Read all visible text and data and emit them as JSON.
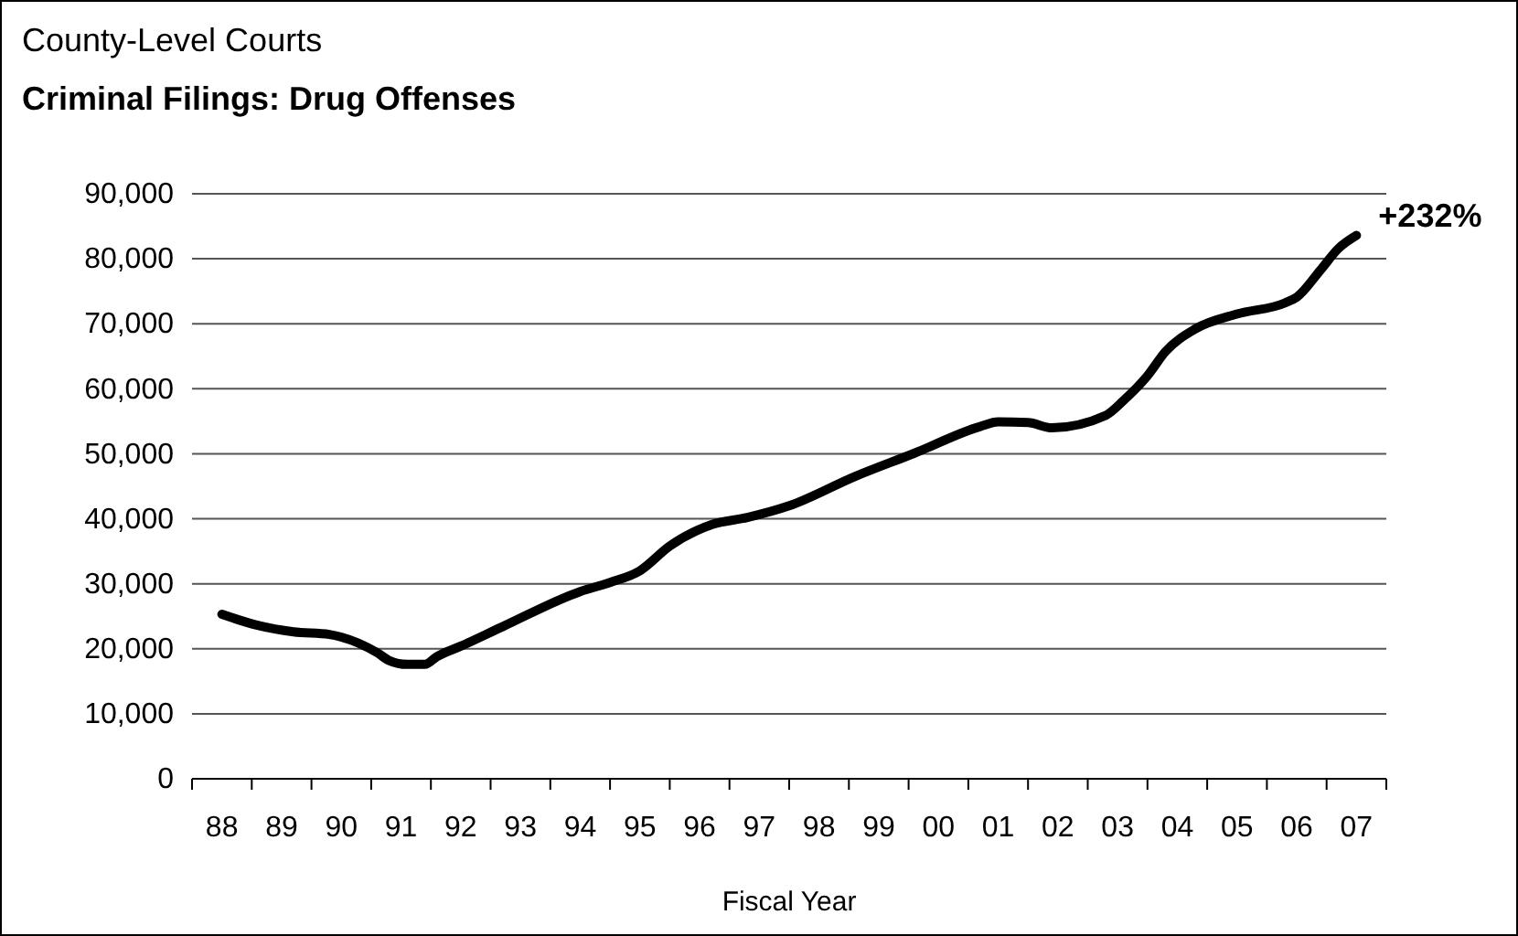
{
  "chart_data": {
    "type": "line",
    "title": "County-Level Courts",
    "subtitle": "Criminal Filings: Drug Offenses",
    "xlabel": "Fiscal Year",
    "x": [
      1988.0,
      1988.6,
      1989.2,
      1989.8,
      1990.0,
      1990.6,
      1990.8,
      1991.1,
      1991.4,
      1991.6,
      1992.0,
      1992.7,
      1994.0,
      1994.5,
      1995.0,
      1995.5,
      1996.2,
      1996.8,
      1997.5,
      1998.6,
      1999.6,
      2000.7,
      2001.0,
      2001.5,
      2001.9,
      2002.8,
      2003.1,
      2003.5,
      2003.8,
      2004.3,
      2005.0,
      2005.8,
      2006.0,
      2006.4,
      2006.7,
      2007.0
    ],
    "series": [
      {
        "color": "#000000",
        "values": [
          25300,
          23600,
          22600,
          22200,
          21800,
          19400,
          18200,
          17600,
          17600,
          18800,
          20400,
          23400,
          28800,
          30200,
          32000,
          35800,
          39100,
          40200,
          42000,
          46500,
          50100,
          54200,
          54900,
          54800,
          54000,
          55900,
          58200,
          62000,
          65700,
          69200,
          71500,
          73200,
          74100,
          78300,
          81600,
          83600
        ]
      }
    ],
    "xlim": [
      1987.5,
      2007.5
    ],
    "xticks": [
      {
        "value": 1987.5,
        "label": null
      },
      {
        "value": 1988,
        "label": "88"
      },
      {
        "value": 1988.5,
        "label": null
      },
      {
        "value": 1989,
        "label": "89"
      },
      {
        "value": 1989.5,
        "label": null
      },
      {
        "value": 1990,
        "label": "90"
      },
      {
        "value": 1990.5,
        "label": null
      },
      {
        "value": 1991,
        "label": "91"
      },
      {
        "value": 1991.5,
        "label": null
      },
      {
        "value": 1992,
        "label": "92"
      },
      {
        "value": 1992.5,
        "label": null
      },
      {
        "value": 1993,
        "label": "93"
      },
      {
        "value": 1993.5,
        "label": null
      },
      {
        "value": 1994,
        "label": "94"
      },
      {
        "value": 1994.5,
        "label": null
      },
      {
        "value": 1995,
        "label": "95"
      },
      {
        "value": 1995.5,
        "label": null
      },
      {
        "value": 1996,
        "label": "96"
      },
      {
        "value": 1996.5,
        "label": null
      },
      {
        "value": 1997,
        "label": "97"
      },
      {
        "value": 1997.5,
        "label": null
      },
      {
        "value": 1998,
        "label": "98"
      },
      {
        "value": 1998.5,
        "label": null
      },
      {
        "value": 1999,
        "label": "99"
      },
      {
        "value": 1999.5,
        "label": null
      },
      {
        "value": 2000,
        "label": "00"
      },
      {
        "value": 2000.5,
        "label": null
      },
      {
        "value": 2001,
        "label": "01"
      },
      {
        "value": 2001.5,
        "label": null
      },
      {
        "value": 2002,
        "label": "02"
      },
      {
        "value": 2002.5,
        "label": null
      },
      {
        "value": 2003,
        "label": "03"
      },
      {
        "value": 2003.5,
        "label": null
      },
      {
        "value": 2004,
        "label": "04"
      },
      {
        "value": 2004.5,
        "label": null
      },
      {
        "value": 2005,
        "label": "05"
      },
      {
        "value": 2005.5,
        "label": null
      },
      {
        "value": 2006,
        "label": "06"
      },
      {
        "value": 2006.5,
        "label": null
      },
      {
        "value": 2007,
        "label": "07"
      },
      {
        "value": 2007.5,
        "label": null
      }
    ],
    "ylim": [
      0,
      90000
    ],
    "yticks": [
      {
        "value": 0,
        "label": "0"
      },
      {
        "value": 10000,
        "label": "10,000"
      },
      {
        "value": 20000,
        "label": "20,000"
      },
      {
        "value": 30000,
        "label": "30,000"
      },
      {
        "value": 40000,
        "label": "40,000"
      },
      {
        "value": 50000,
        "label": "50,000"
      },
      {
        "value": 60000,
        "label": "60,000"
      },
      {
        "value": 70000,
        "label": "70,000"
      },
      {
        "value": 80000,
        "label": "80,000"
      },
      {
        "value": 90000,
        "label": "90,000"
      }
    ],
    "grid": "y",
    "marker": "none",
    "line_style": "solid",
    "annotations": [
      {
        "text": "+232%",
        "x": 2007,
        "y": 83600
      }
    ]
  }
}
